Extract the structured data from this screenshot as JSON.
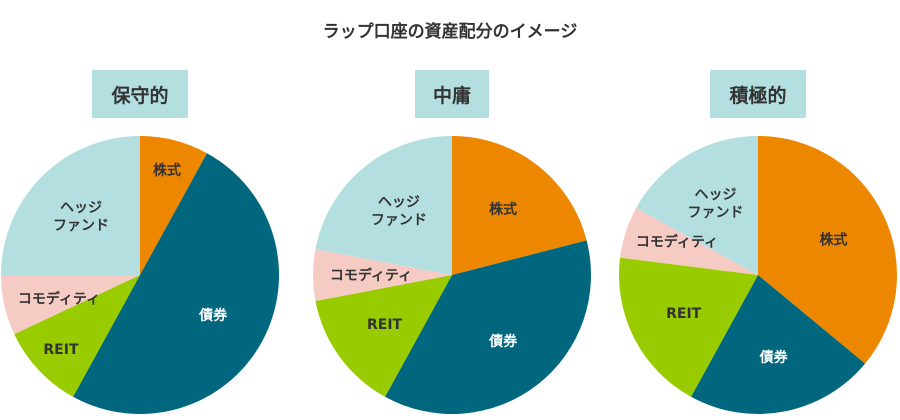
{
  "chart_data": {
    "type": "pie",
    "title": "ラップ口座の資産配分のイメージ",
    "categories": [
      "株式",
      "債券",
      "REIT",
      "コモディティ",
      "ヘッジ\nファンド"
    ],
    "colors": [
      "#ee8700",
      "#00677f",
      "#99cc00",
      "#f6cbc3",
      "#b3dfe0"
    ],
    "label_colors": [
      "#333333",
      "#ffffff",
      "#333333",
      "#333333",
      "#333333"
    ],
    "header_color": "#b3dfe0",
    "charts": [
      {
        "name": "保守的",
        "values": [
          8,
          50,
          10,
          7,
          25
        ]
      },
      {
        "name": "中庸",
        "values": [
          21,
          37,
          14,
          6,
          22
        ]
      },
      {
        "name": "積極的",
        "values": [
          36,
          22,
          19,
          6,
          17
        ]
      }
    ]
  }
}
